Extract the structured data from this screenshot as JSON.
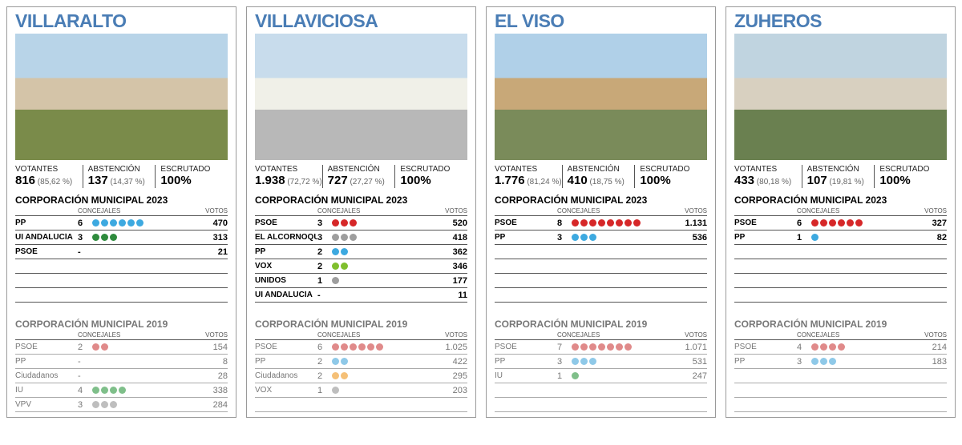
{
  "labels": {
    "votantes": "VOTANTES",
    "abstencion": "ABSTENCIÓN",
    "escrutado": "ESCRUTADO",
    "corp2023": "CORPORACIÓN MUNICIPAL 2023",
    "corp2019": "CORPORACIÓN MUNICIPAL 2019",
    "concejales": "CONCEJALES",
    "votos": "VOTOS"
  },
  "party_colors": {
    "PP": "#3DA9E0",
    "PSOE": "#D62728",
    "UI ANDALUCÍA": "#2E8B3D",
    "IU": "#2E8B3D",
    "EL ALCORNOQUE": "#9E9E9E",
    "VOX": "#7FBF2D",
    "UNIDOS": "#9E9E9E",
    "Ciudadanos": "#F5A623",
    "VPV": "#9E9E9E",
    "PSOE_old": "#E08A8A",
    "PP_old": "#8FC9E8",
    "IU_old": "#7FBF8A",
    "Ciudadanos_old": "#F5C077",
    "VPV_old": "#BEBEBE",
    "VOX_old": "#BEBEBE",
    "UNIDOS_old": "#BEBEBE"
  },
  "rows_2023_total": 6,
  "rows_2019_total": 5,
  "cards": [
    {
      "name": "VILLARALTO",
      "photo_colors": {
        "sky": "#B8D4E8",
        "ground": "#7A8B4A",
        "town": "#D4C4A8"
      },
      "stats": {
        "votantes": "816",
        "votantes_pct": "(85,62 %)",
        "abst": "137",
        "abst_pct": "(14,37 %)",
        "escrutado": "100%"
      },
      "y2023": [
        {
          "party": "PP",
          "conc": "6",
          "dots": 6,
          "votes": "470"
        },
        {
          "party": "UI ANDALUCÍA",
          "conc": "3",
          "dots": 3,
          "votes": "313"
        },
        {
          "party": "PSOE",
          "conc": "-",
          "dots": 0,
          "votes": "21"
        }
      ],
      "y2019": [
        {
          "party": "PSOE",
          "conc": "2",
          "dots": 2,
          "votes": "154"
        },
        {
          "party": "PP",
          "conc": "-",
          "dots": 0,
          "votes": "8"
        },
        {
          "party": "Ciudadanos",
          "conc": "-",
          "dots": 0,
          "votes": "28"
        },
        {
          "party": "IU",
          "conc": "4",
          "dots": 4,
          "votes": "338"
        },
        {
          "party": "VPV",
          "conc": "3",
          "dots": 3,
          "votes": "284"
        }
      ]
    },
    {
      "name": "VILLAVICIOSA",
      "photo_colors": {
        "sky": "#C8DCEC",
        "ground": "#B8B8B8",
        "town": "#F0F0E8"
      },
      "stats": {
        "votantes": "1.938",
        "votantes_pct": "(72,72 %)",
        "abst": "727",
        "abst_pct": "(27,27 %)",
        "escrutado": "100%"
      },
      "y2023": [
        {
          "party": "PSOE",
          "conc": "3",
          "dots": 3,
          "votes": "520"
        },
        {
          "party": "EL ALCORNOQUE",
          "conc": "3",
          "dots": 3,
          "votes": "418"
        },
        {
          "party": "PP",
          "conc": "2",
          "dots": 2,
          "votes": "362"
        },
        {
          "party": "VOX",
          "conc": "2",
          "dots": 2,
          "votes": "346"
        },
        {
          "party": "UNIDOS",
          "conc": "1",
          "dots": 1,
          "votes": "177"
        },
        {
          "party": "UI ANDALUCÍA",
          "conc": "-",
          "dots": 0,
          "votes": "11"
        }
      ],
      "y2019": [
        {
          "party": "PSOE",
          "conc": "6",
          "dots": 6,
          "votes": "1.025"
        },
        {
          "party": "PP",
          "conc": "2",
          "dots": 2,
          "votes": "422"
        },
        {
          "party": "Ciudadanos",
          "conc": "2",
          "dots": 2,
          "votes": "295"
        },
        {
          "party": "VOX",
          "conc": "1",
          "dots": 1,
          "votes": "203"
        }
      ]
    },
    {
      "name": "EL VISO",
      "photo_colors": {
        "sky": "#B0D0E8",
        "ground": "#7A8B5A",
        "town": "#C8A878"
      },
      "stats": {
        "votantes": "1.776",
        "votantes_pct": "(81,24 %)",
        "abst": "410",
        "abst_pct": "(18,75 %)",
        "escrutado": "100%"
      },
      "y2023": [
        {
          "party": "PSOE",
          "conc": "8",
          "dots": 8,
          "votes": "1.131"
        },
        {
          "party": "PP",
          "conc": "3",
          "dots": 3,
          "votes": "536"
        }
      ],
      "y2019": [
        {
          "party": "PSOE",
          "conc": "7",
          "dots": 7,
          "votes": "1.071"
        },
        {
          "party": "PP",
          "conc": "3",
          "dots": 3,
          "votes": "531"
        },
        {
          "party": "IU",
          "conc": "1",
          "dots": 1,
          "votes": "247"
        }
      ]
    },
    {
      "name": "ZUHEROS",
      "photo_colors": {
        "sky": "#C0D4E0",
        "ground": "#6A8050",
        "town": "#D8D0C0"
      },
      "stats": {
        "votantes": "433",
        "votantes_pct": "(80,18 %)",
        "abst": "107",
        "abst_pct": "(19,81 %)",
        "escrutado": "100%"
      },
      "y2023": [
        {
          "party": "PSOE",
          "conc": "6",
          "dots": 6,
          "votes": "327"
        },
        {
          "party": "PP",
          "conc": "1",
          "dots": 1,
          "votes": "82"
        }
      ],
      "y2019": [
        {
          "party": "PSOE",
          "conc": "4",
          "dots": 4,
          "votes": "214"
        },
        {
          "party": "PP",
          "conc": "3",
          "dots": 3,
          "votes": "183"
        }
      ]
    }
  ]
}
